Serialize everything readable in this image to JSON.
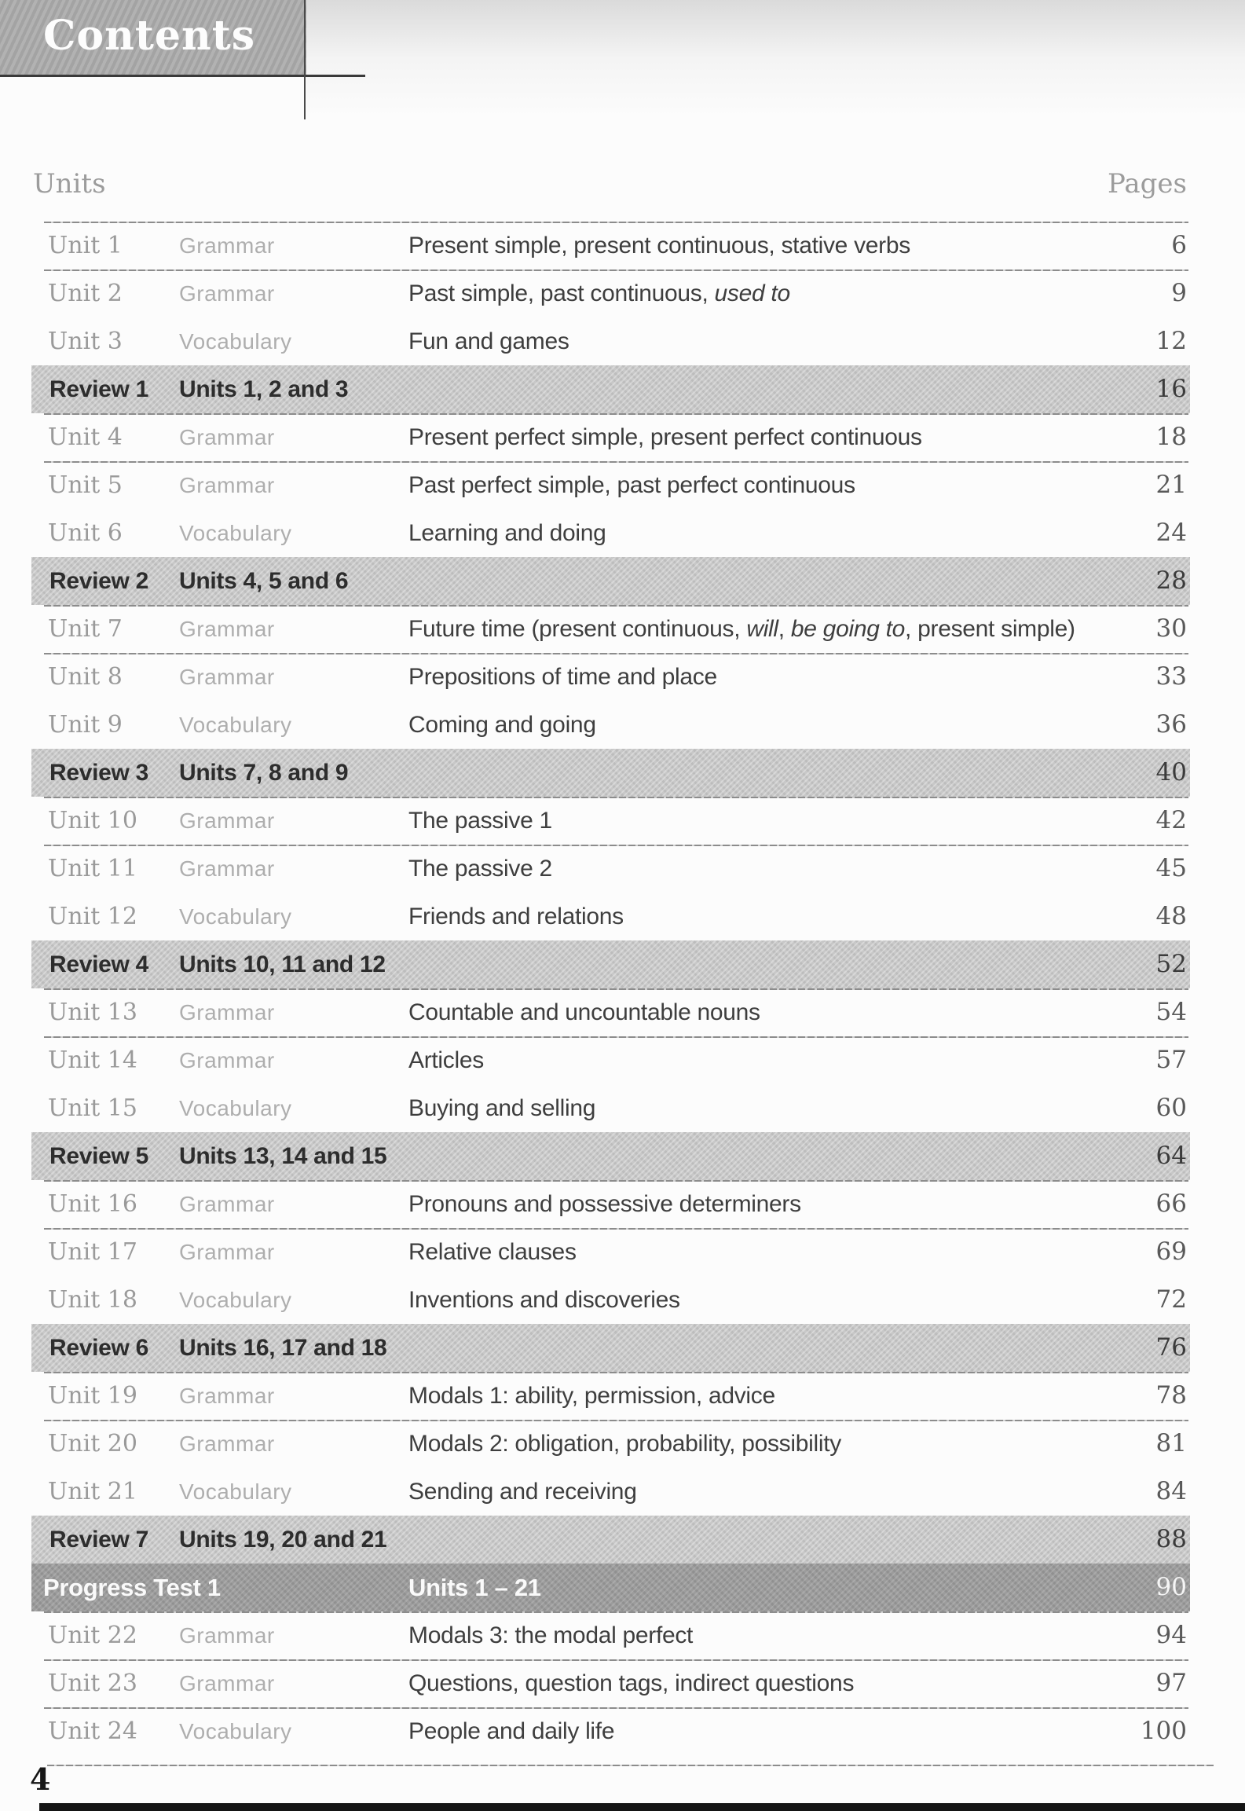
{
  "header": {
    "title": "Contents",
    "units_label": "Units",
    "pages_label": "Pages"
  },
  "colors": {
    "title_box_gray": "#a9a9a9",
    "review_band_gray": "#c8c8c8",
    "progress_band_gray": "#9c9c9c",
    "topic_text": "#3e3e3e",
    "muted_text": "#9a9a9a"
  },
  "toc": {
    "rows": [
      {
        "type": "unit",
        "label": "Unit 1",
        "category": "Grammar",
        "topic": "Present simple, present continuous, stative verbs",
        "page": "6",
        "divider": true
      },
      {
        "type": "unit",
        "label": "Unit 2",
        "category": "Grammar",
        "topic": "Past simple, past continuous, <i>used to</i>",
        "page": "9",
        "divider": true
      },
      {
        "type": "unit",
        "label": "Unit 3",
        "category": "Vocabulary",
        "topic": "Fun and games",
        "page": "12",
        "divider": false
      },
      {
        "type": "review",
        "label": "Review 1",
        "category": "Units 1, 2 and 3",
        "page": "16"
      },
      {
        "type": "unit",
        "label": "Unit 4",
        "category": "Grammar",
        "topic": "Present perfect simple, present perfect continuous",
        "page": "18",
        "divider": true
      },
      {
        "type": "unit",
        "label": "Unit 5",
        "category": "Grammar",
        "topic": "Past perfect simple, past perfect continuous",
        "page": "21",
        "divider": true
      },
      {
        "type": "unit",
        "label": "Unit 6",
        "category": "Vocabulary",
        "topic": "Learning and doing",
        "page": "24",
        "divider": false
      },
      {
        "type": "review",
        "label": "Review 2",
        "category": "Units 4, 5 and 6",
        "page": "28"
      },
      {
        "type": "unit",
        "label": "Unit 7",
        "category": "Grammar",
        "topic": "Future time (present continuous, <i>will</i>, <i>be going to</i>, present simple)",
        "page": "30",
        "divider": true
      },
      {
        "type": "unit",
        "label": "Unit 8",
        "category": "Grammar",
        "topic": "Prepositions of time and place",
        "page": "33",
        "divider": true
      },
      {
        "type": "unit",
        "label": "Unit 9",
        "category": "Vocabulary",
        "topic": "Coming and going",
        "page": "36",
        "divider": false
      },
      {
        "type": "review",
        "label": "Review 3",
        "category": "Units 7, 8 and 9",
        "page": "40"
      },
      {
        "type": "unit",
        "label": "Unit 10",
        "category": "Grammar",
        "topic": "The passive 1",
        "page": "42",
        "divider": true
      },
      {
        "type": "unit",
        "label": "Unit 11",
        "category": "Grammar",
        "topic": "The passive 2",
        "page": "45",
        "divider": true
      },
      {
        "type": "unit",
        "label": "Unit 12",
        "category": "Vocabulary",
        "topic": "Friends and relations",
        "page": "48",
        "divider": false
      },
      {
        "type": "review",
        "label": "Review 4",
        "category": "Units 10, 11 and 12",
        "page": "52"
      },
      {
        "type": "unit",
        "label": "Unit 13",
        "category": "Grammar",
        "topic": "Countable and uncountable nouns",
        "page": "54",
        "divider": true
      },
      {
        "type": "unit",
        "label": "Unit 14",
        "category": "Grammar",
        "topic": "Articles",
        "page": "57",
        "divider": true
      },
      {
        "type": "unit",
        "label": "Unit 15",
        "category": "Vocabulary",
        "topic": "Buying and selling",
        "page": "60",
        "divider": false
      },
      {
        "type": "review",
        "label": "Review 5",
        "category": "Units 13, 14 and 15",
        "page": "64"
      },
      {
        "type": "unit",
        "label": "Unit 16",
        "category": "Grammar",
        "topic": "Pronouns and possessive determiners",
        "page": "66",
        "divider": true
      },
      {
        "type": "unit",
        "label": "Unit 17",
        "category": "Grammar",
        "topic": "Relative clauses",
        "page": "69",
        "divider": true
      },
      {
        "type": "unit",
        "label": "Unit 18",
        "category": "Vocabulary",
        "topic": "Inventions and discoveries",
        "page": "72",
        "divider": false
      },
      {
        "type": "review",
        "label": "Review 6",
        "category": "Units 16, 17 and 18",
        "page": "76"
      },
      {
        "type": "unit",
        "label": "Unit 19",
        "category": "Grammar",
        "topic": "Modals 1: ability, permission, advice",
        "page": "78",
        "divider": true
      },
      {
        "type": "unit",
        "label": "Unit 20",
        "category": "Grammar",
        "topic": "Modals 2: obligation, probability, possibility",
        "page": "81",
        "divider": true
      },
      {
        "type": "unit",
        "label": "Unit 21",
        "category": "Vocabulary",
        "topic": "Sending and receiving",
        "page": "84",
        "divider": false
      },
      {
        "type": "review",
        "label": "Review 7",
        "category": "Units 19, 20 and 21",
        "page": "88"
      },
      {
        "type": "progress",
        "label": "Progress Test 1",
        "topic": "Units 1 – 21",
        "page": "90"
      },
      {
        "type": "unit",
        "label": "Unit 22",
        "category": "Grammar",
        "topic": "Modals 3: the modal perfect",
        "page": "94",
        "divider": true
      },
      {
        "type": "unit",
        "label": "Unit 23",
        "category": "Grammar",
        "topic": "Questions, question tags, indirect questions",
        "page": "97",
        "divider": true
      },
      {
        "type": "unit",
        "label": "Unit 24",
        "category": "Vocabulary",
        "topic": "People and daily life",
        "page": "100",
        "divider": true
      }
    ]
  },
  "footer": {
    "page_number": "4"
  }
}
